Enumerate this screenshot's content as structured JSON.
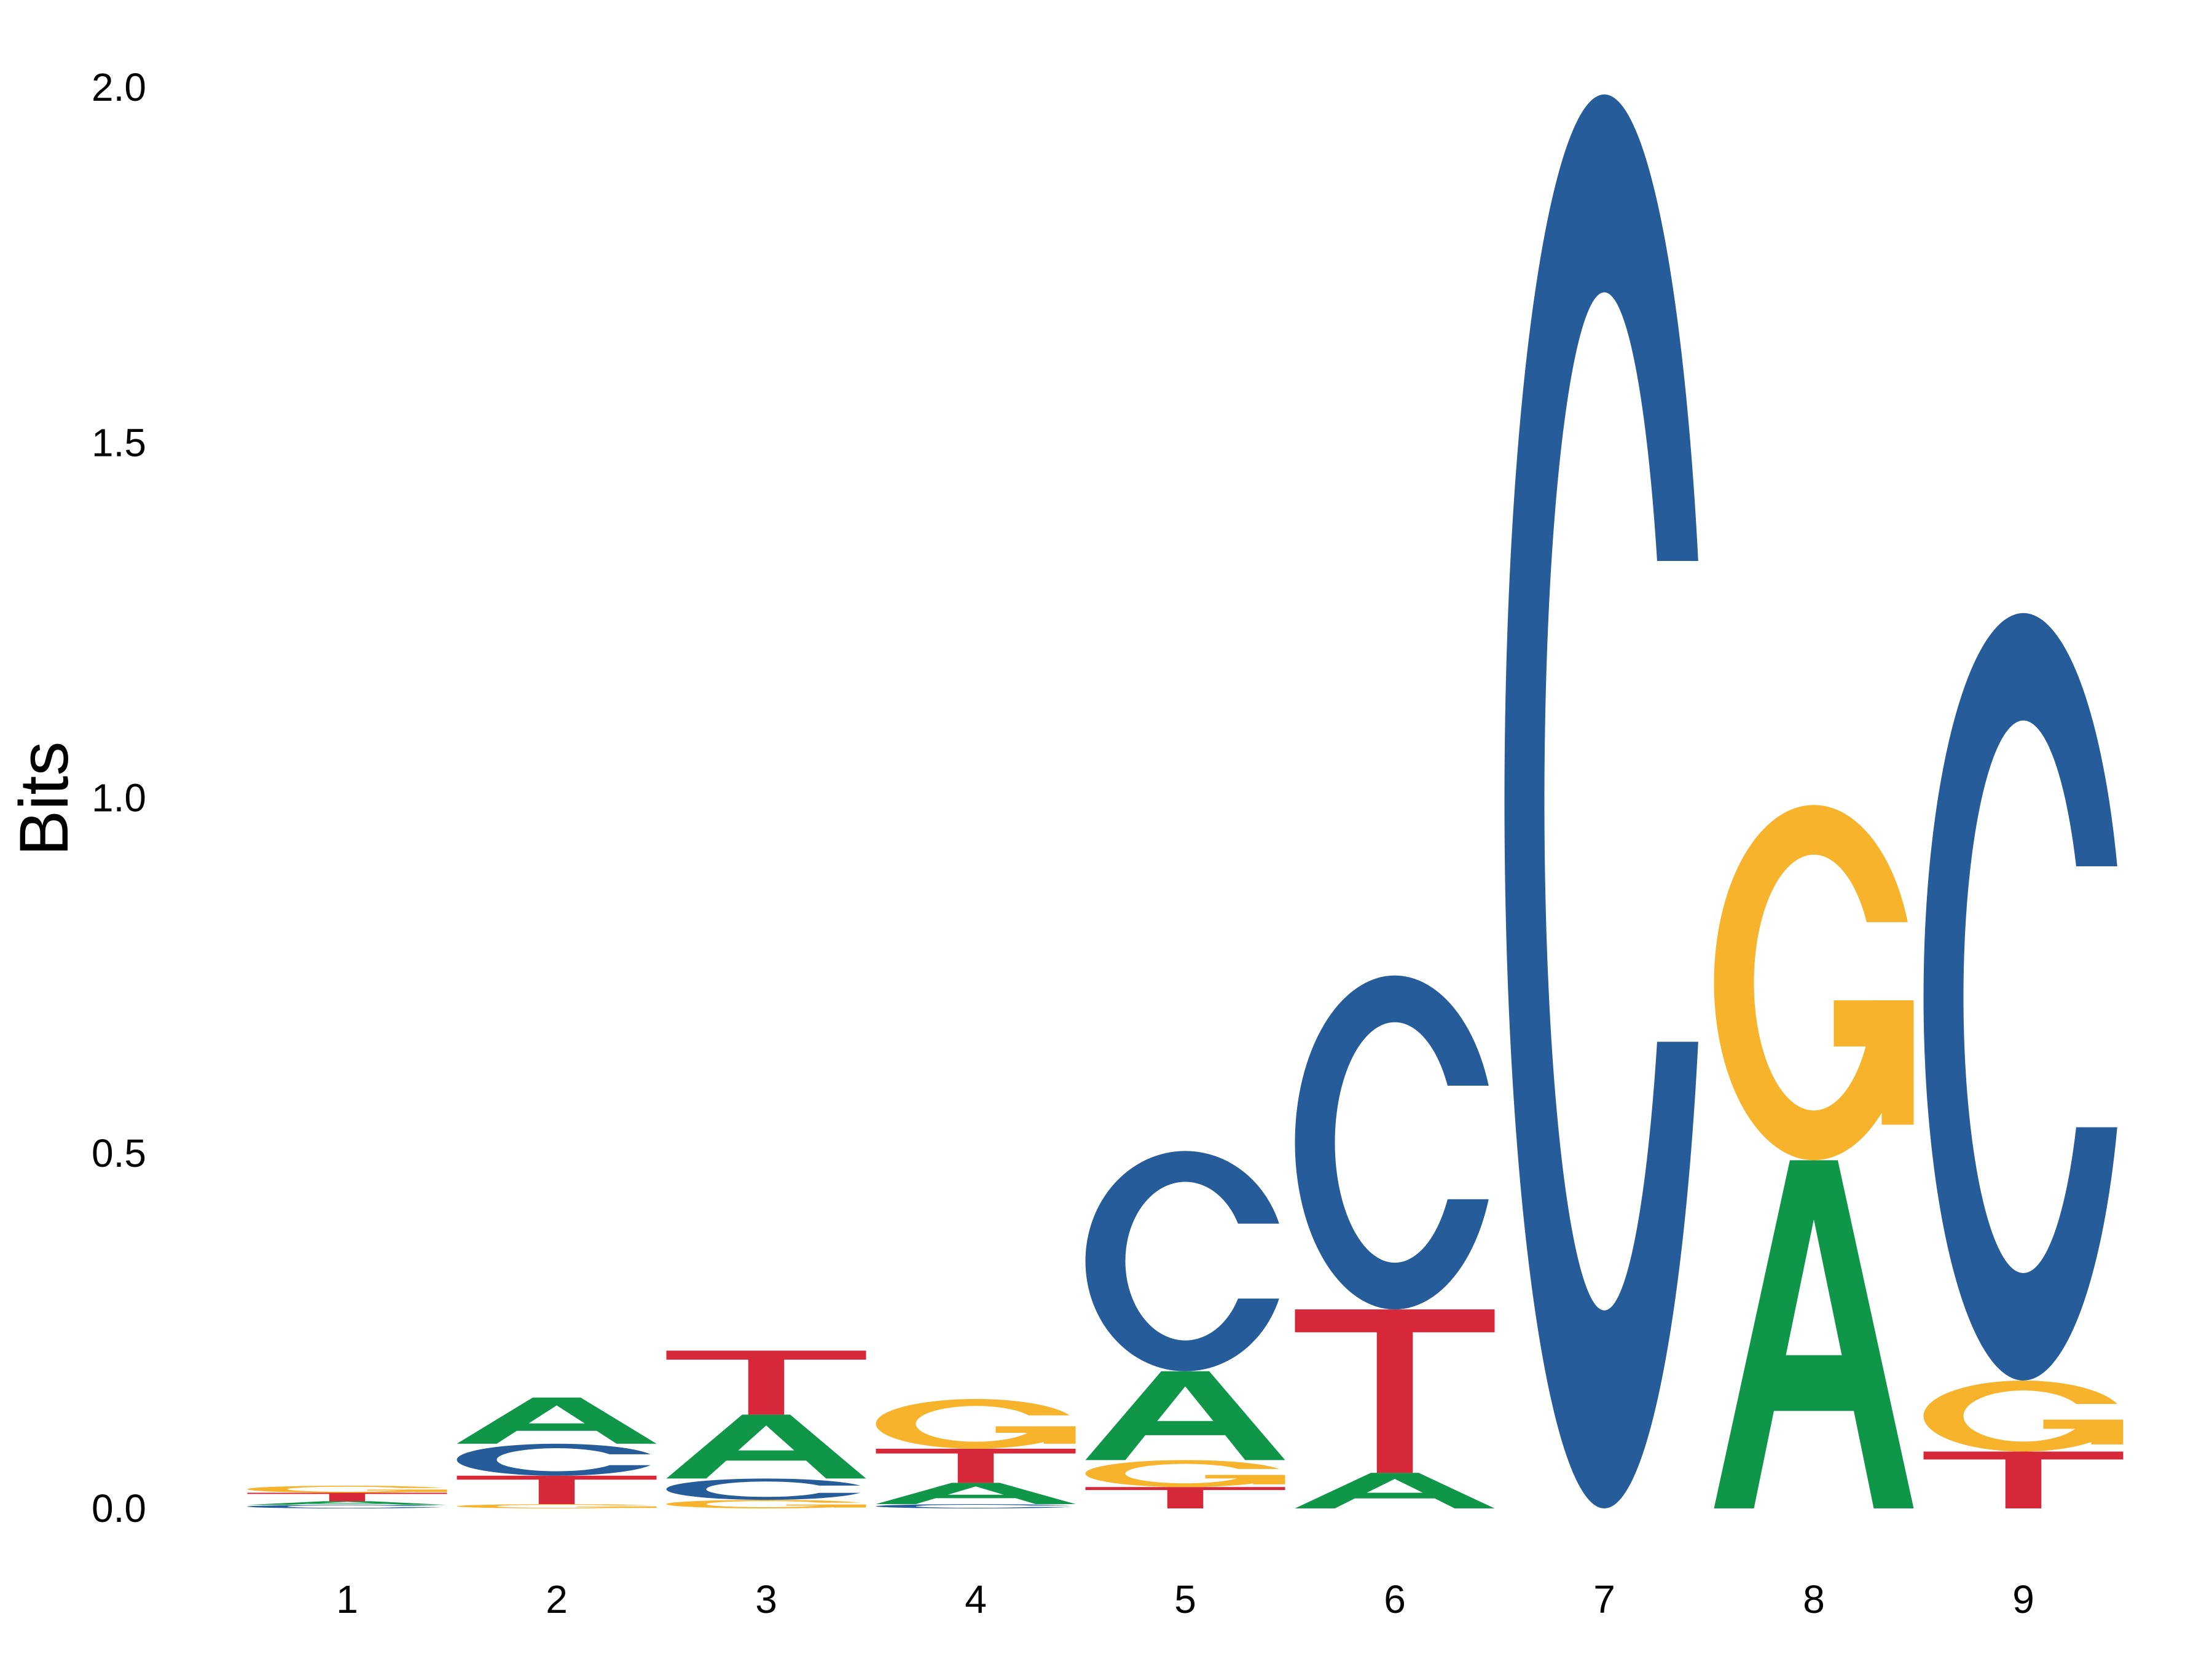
{
  "colors": {
    "A": "#109648",
    "C": "#255C99",
    "G": "#F7B32B",
    "T": "#D62839"
  },
  "chart_data": {
    "type": "sequence-logo",
    "title": "",
    "xlabel": "",
    "ylabel": "Bits",
    "ylim": [
      0,
      2.0
    ],
    "yticks": [
      "0.0",
      "0.5",
      "1.0",
      "1.5",
      "2.0"
    ],
    "grid": false,
    "positions": [
      {
        "label": "1",
        "letters": [
          {
            "base": "C",
            "height": 0.005
          },
          {
            "base": "A",
            "height": 0.005
          },
          {
            "base": "T",
            "height": 0.012
          },
          {
            "base": "G",
            "height": 0.01
          }
        ]
      },
      {
        "label": "2",
        "letters": [
          {
            "base": "G",
            "height": 0.006
          },
          {
            "base": "T",
            "height": 0.04
          },
          {
            "base": "C",
            "height": 0.045
          },
          {
            "base": "A",
            "height": 0.065
          }
        ]
      },
      {
        "label": "3",
        "letters": [
          {
            "base": "G",
            "height": 0.012
          },
          {
            "base": "C",
            "height": 0.03
          },
          {
            "base": "A",
            "height": 0.09
          },
          {
            "base": "T",
            "height": 0.09
          }
        ]
      },
      {
        "label": "4",
        "letters": [
          {
            "base": "C",
            "height": 0.006
          },
          {
            "base": "A",
            "height": 0.03
          },
          {
            "base": "T",
            "height": 0.048
          },
          {
            "base": "G",
            "height": 0.07
          }
        ]
      },
      {
        "label": "5",
        "letters": [
          {
            "base": "T",
            "height": 0.03
          },
          {
            "base": "G",
            "height": 0.038
          },
          {
            "base": "A",
            "height": 0.125
          },
          {
            "base": "C",
            "height": 0.31
          }
        ]
      },
      {
        "label": "6",
        "letters": [
          {
            "base": "A",
            "height": 0.05
          },
          {
            "base": "T",
            "height": 0.23
          },
          {
            "base": "C",
            "height": 0.47
          }
        ]
      },
      {
        "label": "7",
        "letters": [
          {
            "base": "C",
            "height": 1.99
          }
        ]
      },
      {
        "label": "8",
        "letters": [
          {
            "base": "A",
            "height": 0.49
          },
          {
            "base": "G",
            "height": 0.5
          }
        ]
      },
      {
        "label": "9",
        "letters": [
          {
            "base": "T",
            "height": 0.08
          },
          {
            "base": "G",
            "height": 0.1
          },
          {
            "base": "C",
            "height": 1.08
          }
        ]
      }
    ]
  }
}
